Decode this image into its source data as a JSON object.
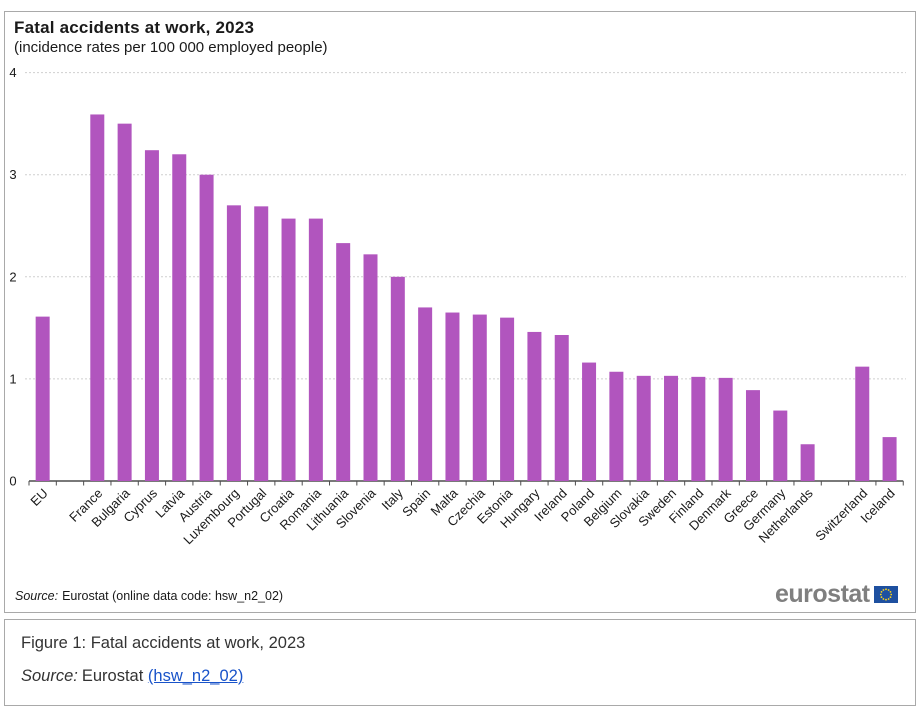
{
  "chart_data": {
    "type": "bar",
    "title": "Fatal accidents at work, 2023",
    "subtitle": "(incidence rates per 100 000 employed people)",
    "ylabel": "",
    "xlabel": "",
    "ylim": [
      0,
      4
    ],
    "yticks": [
      0,
      1,
      2,
      3,
      4
    ],
    "grid": "horizontal-dotted",
    "legend": "none",
    "bar_color": "#b155be",
    "groups": [
      {
        "name": "eu-aggregate",
        "items": [
          {
            "label": "EU",
            "value": 1.61
          }
        ]
      },
      {
        "name": "eu-countries",
        "items": [
          {
            "label": "France",
            "value": 3.59
          },
          {
            "label": "Bulgaria",
            "value": 3.5
          },
          {
            "label": "Cyprus",
            "value": 3.24
          },
          {
            "label": "Latvia",
            "value": 3.2
          },
          {
            "label": "Austria",
            "value": 3.0
          },
          {
            "label": "Luxembourg",
            "value": 2.7
          },
          {
            "label": "Portugal",
            "value": 2.69
          },
          {
            "label": "Croatia",
            "value": 2.57
          },
          {
            "label": "Romania",
            "value": 2.57
          },
          {
            "label": "Lithuania",
            "value": 2.33
          },
          {
            "label": "Slovenia",
            "value": 2.22
          },
          {
            "label": "Italy",
            "value": 2.0
          },
          {
            "label": "Spain",
            "value": 1.7
          },
          {
            "label": "Malta",
            "value": 1.65
          },
          {
            "label": "Czechia",
            "value": 1.63
          },
          {
            "label": "Estonia",
            "value": 1.6
          },
          {
            "label": "Hungary",
            "value": 1.46
          },
          {
            "label": "Ireland",
            "value": 1.43
          },
          {
            "label": "Poland",
            "value": 1.16
          },
          {
            "label": "Belgium",
            "value": 1.07
          },
          {
            "label": "Slovakia",
            "value": 1.03
          },
          {
            "label": "Sweden",
            "value": 1.03
          },
          {
            "label": "Finland",
            "value": 1.02
          },
          {
            "label": "Denmark",
            "value": 1.01
          },
          {
            "label": "Greece",
            "value": 0.89
          },
          {
            "label": "Germany",
            "value": 0.69
          },
          {
            "label": "Netherlands",
            "value": 0.36
          }
        ]
      },
      {
        "name": "efta",
        "items": [
          {
            "label": "Switzerland",
            "value": 1.12
          },
          {
            "label": "Iceland",
            "value": 0.43
          }
        ]
      }
    ]
  },
  "chart_footer": {
    "source_prefix": "Source:",
    "source_rest": "Eurostat (online data code: hsw_n2_02)",
    "logo_text": "eurostat"
  },
  "caption": {
    "figure_label": "Figure 1: Fatal accidents at work, 2023",
    "source_prefix": "Source:",
    "source_mid": "Eurostat",
    "link_text": "(hsw_n2_02)"
  },
  "colors": {
    "bar": "#b155be",
    "gridline": "#cfcfcf",
    "axis": "#4d4d4d",
    "border": "#a9a9a9",
    "logo_gray": "#7f7f7f",
    "eu_flag_blue": "#1e50a0",
    "eu_flag_stars": "#ffd617",
    "link_blue": "#1953c9"
  }
}
